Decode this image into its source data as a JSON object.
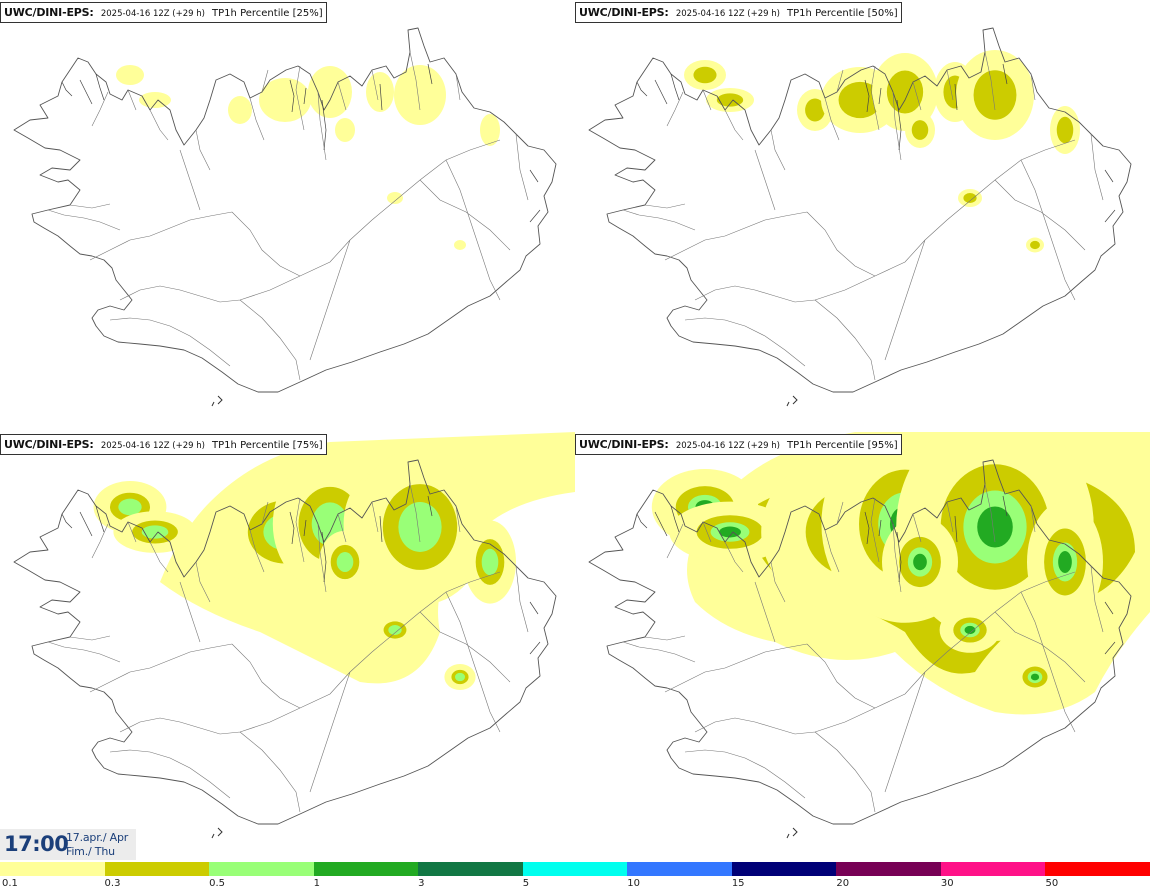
{
  "panels": [
    {
      "model": "UWC/DINI-EPS",
      "date": "2025-04-16 12Z (+29 h)",
      "param": "TP1h Percentile [25%]",
      "level": 1
    },
    {
      "model": "UWC/DINI-EPS",
      "date": "2025-04-16 12Z (+29 h)",
      "param": "TP1h Percentile [50%]",
      "level": 2
    },
    {
      "model": "UWC/DINI-EPS",
      "date": "2025-04-16 12Z (+29 h)",
      "param": "TP1h Percentile [75%]",
      "level": 3
    },
    {
      "model": "UWC/DINI-EPS",
      "date": "2025-04-16 12Z (+29 h)",
      "param": "TP1h Percentile [95%]",
      "level": 4
    }
  ],
  "time": {
    "clock": "17:00",
    "date_line1": "17.apr./ Apr",
    "date_line2": "Fim./ Thu"
  },
  "scale": {
    "colors": [
      "#ffff99",
      "#cccc00",
      "#99ff77",
      "#22aa22",
      "#117744",
      "#00ffee",
      "#3377ff",
      "#000077",
      "#770055",
      "#ff1188",
      "#ff0000"
    ],
    "labels": [
      "0.1",
      "0.3",
      "0.5",
      "1",
      "3",
      "5",
      "10",
      "15",
      "20",
      "30",
      "50"
    ]
  },
  "colors": {
    "coast": "#555555",
    "roads": "#666666",
    "title_text": "#1b3f7a",
    "time_box_bg": "#ececec"
  }
}
